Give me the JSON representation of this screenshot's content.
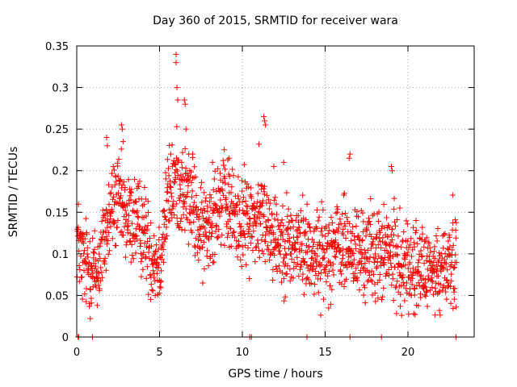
{
  "chart_data": {
    "type": "scatter",
    "title": "Day 360 of 2015, SRMTID for receiver wara",
    "xlabel": "GPS time / hours",
    "ylabel": "SRMTID / TECUs",
    "xlim": [
      0,
      24
    ],
    "ylim": [
      0,
      0.35
    ],
    "xticks": [
      0,
      5,
      10,
      15,
      20
    ],
    "yticks": [
      0,
      0.05,
      0.1,
      0.15,
      0.2,
      0.25,
      0.3,
      0.35
    ],
    "xtick_labels": [
      "0",
      "5",
      "10",
      "15",
      "20"
    ],
    "ytick_labels": [
      "0",
      "0.05",
      "0.1",
      "0.15",
      "0.2",
      "0.25",
      "0.3",
      "0.35"
    ],
    "grid": true,
    "marker": "+",
    "color": "#ff0000",
    "series_name": "SRMTID",
    "trend": [
      [
        0.0,
        0.125
      ],
      [
        0.3,
        0.09
      ],
      [
        0.8,
        0.085
      ],
      [
        1.2,
        0.075
      ],
      [
        1.7,
        0.12
      ],
      [
        2.2,
        0.16
      ],
      [
        2.6,
        0.16
      ],
      [
        3.0,
        0.14
      ],
      [
        3.5,
        0.14
      ],
      [
        4.0,
        0.13
      ],
      [
        4.5,
        0.1
      ],
      [
        5.0,
        0.09
      ],
      [
        5.5,
        0.17
      ],
      [
        6.0,
        0.19
      ],
      [
        6.5,
        0.175
      ],
      [
        7.0,
        0.16
      ],
      [
        7.5,
        0.12
      ],
      [
        8.0,
        0.14
      ],
      [
        8.5,
        0.165
      ],
      [
        9.0,
        0.16
      ],
      [
        9.5,
        0.145
      ],
      [
        10.0,
        0.14
      ],
      [
        10.5,
        0.14
      ],
      [
        11.0,
        0.14
      ],
      [
        11.5,
        0.14
      ],
      [
        12.0,
        0.12
      ],
      [
        12.5,
        0.115
      ],
      [
        13.0,
        0.11
      ],
      [
        13.5,
        0.11
      ],
      [
        14.0,
        0.105
      ],
      [
        14.5,
        0.1
      ],
      [
        15.0,
        0.1
      ],
      [
        15.5,
        0.11
      ],
      [
        16.0,
        0.11
      ],
      [
        16.5,
        0.105
      ],
      [
        17.0,
        0.1
      ],
      [
        17.5,
        0.1
      ],
      [
        18.0,
        0.1
      ],
      [
        18.5,
        0.1
      ],
      [
        19.0,
        0.1
      ],
      [
        19.5,
        0.09
      ],
      [
        20.0,
        0.085
      ],
      [
        20.5,
        0.08
      ],
      [
        21.0,
        0.08
      ],
      [
        21.5,
        0.075
      ],
      [
        22.0,
        0.08
      ],
      [
        22.5,
        0.09
      ],
      [
        22.9,
        0.1
      ]
    ],
    "spikes": [
      [
        6.0,
        0.34
      ],
      [
        6.0,
        0.33
      ],
      [
        6.05,
        0.3
      ],
      [
        6.1,
        0.285
      ],
      [
        6.5,
        0.285
      ],
      [
        6.55,
        0.28
      ],
      [
        6.6,
        0.25
      ],
      [
        2.7,
        0.255
      ],
      [
        2.75,
        0.25
      ],
      [
        2.8,
        0.235
      ],
      [
        1.8,
        0.24
      ],
      [
        1.85,
        0.23
      ],
      [
        11.3,
        0.265
      ],
      [
        11.35,
        0.26
      ],
      [
        11.4,
        0.255
      ],
      [
        11.0,
        0.232
      ],
      [
        16.5,
        0.22
      ],
      [
        16.45,
        0.215
      ],
      [
        19.0,
        0.205
      ],
      [
        19.05,
        0.2
      ],
      [
        9.2,
        0.215
      ],
      [
        8.2,
        0.21
      ],
      [
        7.0,
        0.22
      ],
      [
        11.9,
        0.205
      ],
      [
        12.5,
        0.21
      ]
    ],
    "zero_points": [
      0.08,
      0.12,
      0.95,
      10.45,
      10.55,
      13.9,
      16.5,
      18.4,
      22.9
    ]
  }
}
